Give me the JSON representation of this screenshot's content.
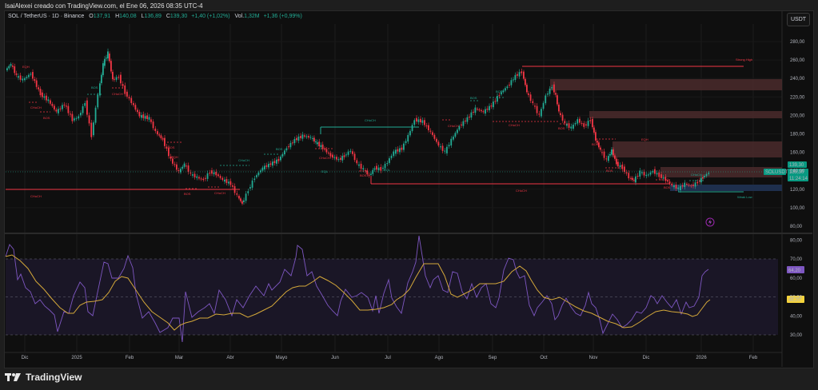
{
  "caption": "IsaiAlexei creado con TradingView.com, el Ene 06, 2026 08:35 UTC-4",
  "symbol": {
    "title": "SOL / TetherUS · 1D · Binance",
    "open_label": "O",
    "open": "137,91",
    "high_label": "H",
    "high": "140,08",
    "low_label": "L",
    "low": "136,89",
    "close_label": "C",
    "close": "139,30",
    "change": "+1,40 (+1,02%)",
    "vol_label": "Vol.",
    "vol": "1,32M",
    "vol_change": "+1,36 (+0,99%)"
  },
  "currency_button": "USDT",
  "price_axis": {
    "ticks": [
      "280,00",
      "260,00",
      "240,00",
      "220,00",
      "200,00",
      "180,00",
      "160,00",
      "140,00",
      "120,00",
      "100,00",
      "80,00"
    ],
    "last_price": "139,30",
    "ticker_tag": "SOLUSDT",
    "countdown": "11:24:14"
  },
  "rsi_axis": {
    "ticks": [
      "80,00",
      "70,00",
      "60,00",
      "50,00",
      "40,00",
      "30,00"
    ],
    "rsi_value": "64,20",
    "ma_value": "48,20"
  },
  "time_axis": [
    "Dic",
    "2025",
    "Feb",
    "Mar",
    "Abr",
    "Mayo",
    "Jun",
    "Jul",
    "Ago",
    "Sep",
    "Oct",
    "Nov",
    "Dic",
    "2026",
    "Feb"
  ],
  "annotations": {
    "strong_high": "Strong High",
    "weak_low": "Weak Low",
    "labels": [
      "CHoCH",
      "BOS",
      "EQH",
      "EQL"
    ]
  },
  "colors": {
    "up": "#22ab94",
    "down": "#f23645",
    "rsi": "#7e57c2",
    "rsi_ma": "#d4a83a",
    "supply_zone": "#4a2a2c",
    "demand_zone": "#1e2f4d",
    "bg": "#0f0f0f"
  },
  "footer": {
    "brand": "TradingView"
  },
  "chart_data": [
    {
      "type": "candlestick",
      "title": "SOL / TetherUS · 1D · Binance",
      "ylabel": "USDT",
      "ylim": [
        80,
        290
      ],
      "x_ticks": [
        "Dic",
        "2025",
        "Feb",
        "Mar",
        "Abr",
        "Mayo",
        "Jun",
        "Jul",
        "Ago",
        "Sep",
        "Oct",
        "Nov",
        "Dic",
        "2026",
        "Feb"
      ],
      "approx_close_path": [
        {
          "x": "Dic 2024",
          "y": 235
        },
        {
          "x": "2025",
          "y": 205
        },
        {
          "x": "mid Ene",
          "y": 260
        },
        {
          "x": "Feb",
          "y": 200
        },
        {
          "x": "Mar",
          "y": 140
        },
        {
          "x": "Abr",
          "y": 118
        },
        {
          "x": "Abr mid",
          "y": 100
        },
        {
          "x": "Mayo",
          "y": 170
        },
        {
          "x": "late Mayo",
          "y": 180
        },
        {
          "x": "Jun",
          "y": 150
        },
        {
          "x": "late Jun",
          "y": 140
        },
        {
          "x": "Jul",
          "y": 155
        },
        {
          "x": "late Jul",
          "y": 195
        },
        {
          "x": "Ago",
          "y": 165
        },
        {
          "x": "Sep",
          "y": 220
        },
        {
          "x": "mid Sep",
          "y": 250
        },
        {
          "x": "Oct",
          "y": 220
        },
        {
          "x": "Oct mid",
          "y": 180
        },
        {
          "x": "Nov",
          "y": 160
        },
        {
          "x": "Nov mid",
          "y": 135
        },
        {
          "x": "Dic",
          "y": 130
        },
        {
          "x": "late Dic",
          "y": 122
        },
        {
          "x": "2026",
          "y": 139.3
        }
      ],
      "last": {
        "open": 137.91,
        "high": 140.08,
        "low": 136.89,
        "close": 139.3
      },
      "levels": [
        {
          "name": "Strong High",
          "price": 253
        },
        {
          "name": "CHoCH (left)",
          "price": 125
        },
        {
          "name": "CHoCH (right)",
          "price": 129
        },
        {
          "name": "Weak Low",
          "price": 116
        }
      ],
      "zones": [
        {
          "type": "supply",
          "from": 228,
          "to": 238
        },
        {
          "type": "supply",
          "from": 197,
          "to": 203
        },
        {
          "type": "supply",
          "from": 155,
          "to": 170
        },
        {
          "type": "supply",
          "from": 132,
          "to": 148
        },
        {
          "type": "demand",
          "from": 118,
          "to": 124
        }
      ]
    },
    {
      "type": "line",
      "title": "RSI",
      "ylim": [
        25,
        82
      ],
      "bands": [
        30,
        50,
        70
      ],
      "series": [
        {
          "name": "RSI",
          "last": 64.2
        },
        {
          "name": "RSI MA",
          "last": 48.2
        }
      ]
    }
  ]
}
